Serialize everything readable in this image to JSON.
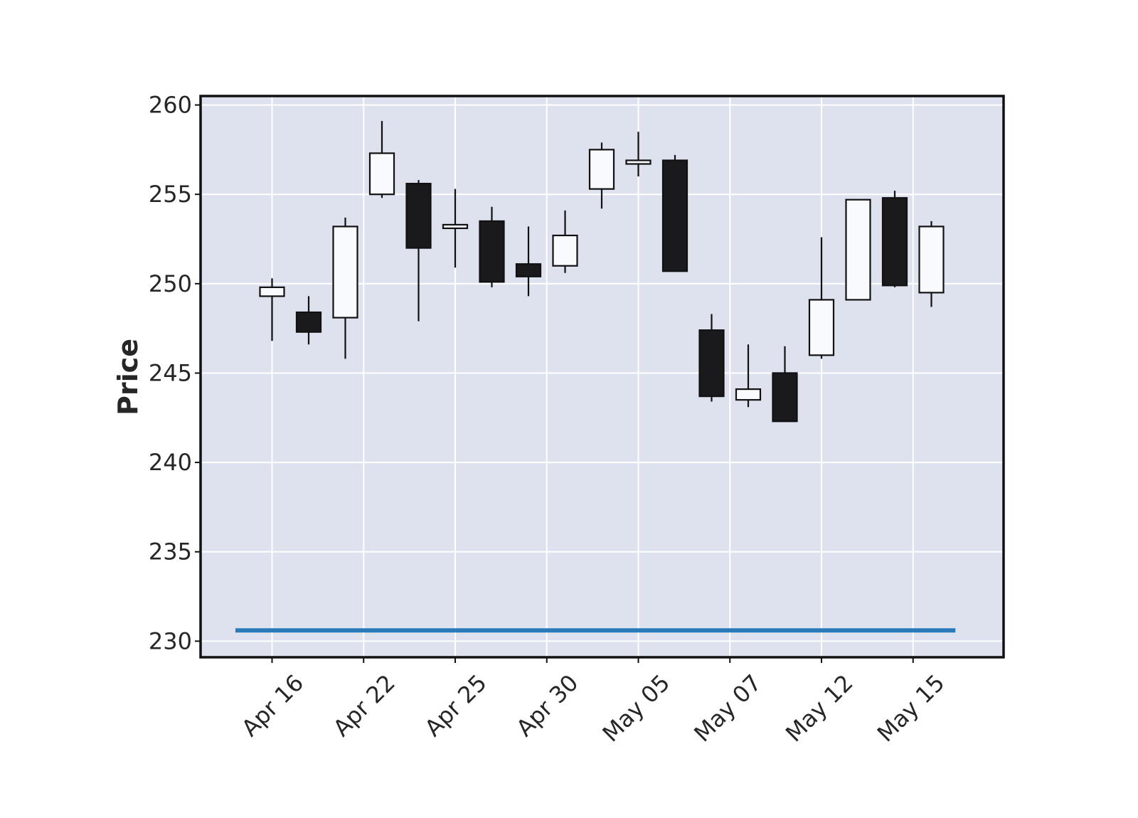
{
  "chart_data": {
    "type": "candlestick",
    "title": "",
    "xlabel": "",
    "ylabel": "Price",
    "ylim": [
      229.1,
      260.5
    ],
    "yticks": [
      "230",
      "235",
      "240",
      "245",
      "250",
      "255",
      "260"
    ],
    "xtick_labels": [
      "Apr 16",
      "Apr 22",
      "Apr 25",
      "Apr 30",
      "May 05",
      "May 07",
      "May 12",
      "May 15"
    ],
    "grid": true,
    "background_color": "#dde2ee",
    "up_color": "#f8fafd",
    "down_color": "#1a1a1c",
    "line_color": "#2a7ab9",
    "candles": [
      {
        "open": 249.3,
        "high": 250.3,
        "low": 246.8,
        "close": 249.8
      },
      {
        "open": 248.4,
        "high": 249.3,
        "low": 246.6,
        "close": 247.3
      },
      {
        "open": 248.1,
        "high": 253.7,
        "low": 245.8,
        "close": 253.2
      },
      {
        "open": 255.0,
        "high": 259.1,
        "low": 254.8,
        "close": 257.3
      },
      {
        "open": 255.6,
        "high": 255.8,
        "low": 247.9,
        "close": 252.0
      },
      {
        "open": 253.1,
        "high": 255.3,
        "low": 250.9,
        "close": 253.3
      },
      {
        "open": 253.5,
        "high": 254.3,
        "low": 249.8,
        "close": 250.1
      },
      {
        "open": 251.1,
        "high": 253.2,
        "low": 249.3,
        "close": 250.4
      },
      {
        "open": 251.0,
        "high": 254.1,
        "low": 250.6,
        "close": 252.7
      },
      {
        "open": 255.3,
        "high": 257.9,
        "low": 254.2,
        "close": 257.5
      },
      {
        "open": 256.7,
        "high": 258.5,
        "low": 256.0,
        "close": 256.9
      },
      {
        "open": 256.9,
        "high": 257.2,
        "low": 250.7,
        "close": 250.7
      },
      {
        "open": 247.4,
        "high": 248.3,
        "low": 243.4,
        "close": 243.7
      },
      {
        "open": 243.5,
        "high": 246.6,
        "low": 243.1,
        "close": 244.1
      },
      {
        "open": 245.0,
        "high": 246.5,
        "low": 242.3,
        "close": 242.3
      },
      {
        "open": 246.0,
        "high": 252.6,
        "low": 245.8,
        "close": 249.1
      },
      {
        "open": 249.1,
        "high": 254.7,
        "low": 249.1,
        "close": 254.7
      },
      {
        "open": 254.8,
        "high": 255.2,
        "low": 249.8,
        "close": 249.9
      },
      {
        "open": 249.5,
        "high": 253.5,
        "low": 248.7,
        "close": 253.2
      }
    ],
    "horizontal_line": {
      "value": 230.6
    }
  }
}
